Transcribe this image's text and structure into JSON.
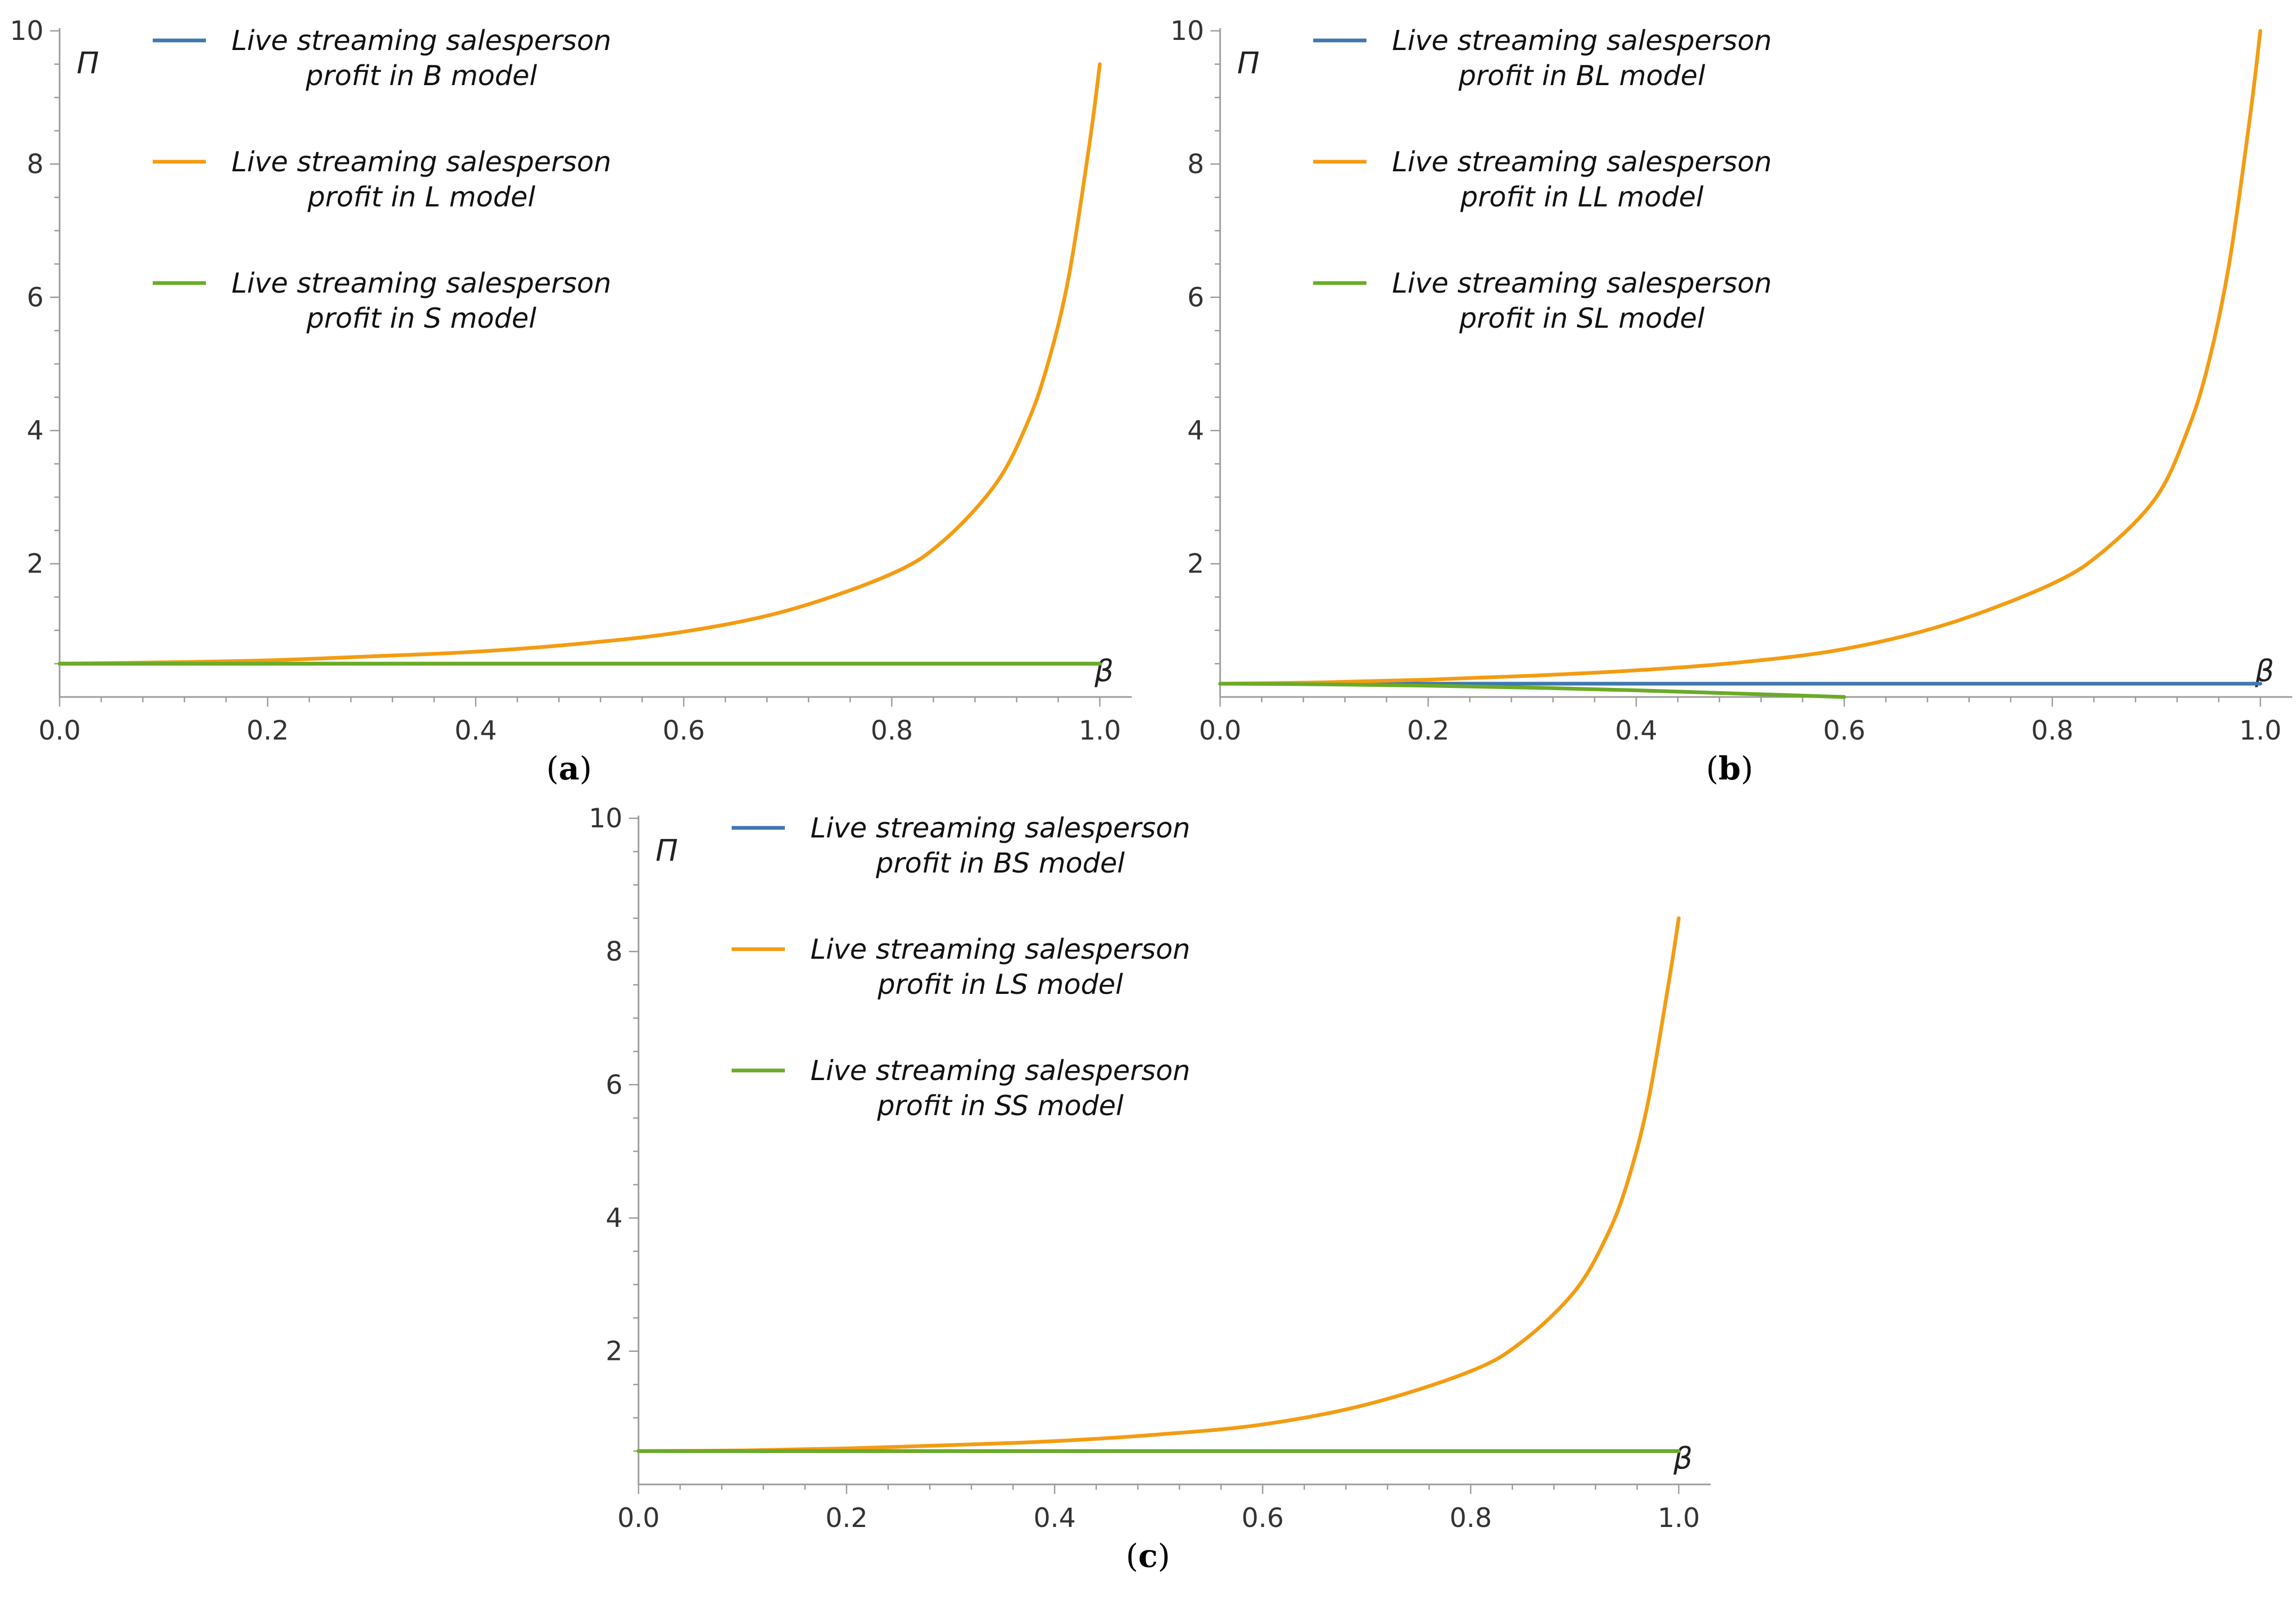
{
  "colors": {
    "blue": "#3f78b0",
    "orange": "#f39c12",
    "green": "#6aab27",
    "axis": "#9a9a9a"
  },
  "chart_data": [
    {
      "id": "a",
      "type": "line",
      "panel_label": "a",
      "xlabel": "β",
      "ylabel": "Π",
      "xlim": [
        0.0,
        1.0
      ],
      "ylim": [
        0,
        10
      ],
      "x_ticks": [
        "0.0",
        "0.2",
        "0.4",
        "0.6",
        "0.8",
        "1.0"
      ],
      "y_ticks": [
        "2",
        "4",
        "6",
        "8",
        "10"
      ],
      "legend_placement": "top-left",
      "series": [
        {
          "name_line1": "Live streaming salesperson",
          "name_line2": "profit in B model",
          "color": "#3f78b0",
          "x": [
            0.0,
            0.2,
            0.4,
            0.6,
            0.8,
            1.0
          ],
          "values": [
            0.5,
            0.5,
            0.5,
            0.5,
            0.5,
            0.5
          ]
        },
        {
          "name_line1": "Live streaming salesperson",
          "name_line2": "profit in L model",
          "color": "#f39c12",
          "x": [
            0.0,
            0.1,
            0.2,
            0.3,
            0.4,
            0.5,
            0.6,
            0.7,
            0.8,
            0.85,
            0.9,
            0.93,
            0.95,
            0.97,
            0.99,
            1.0
          ],
          "values": [
            0.5,
            0.52,
            0.55,
            0.61,
            0.68,
            0.8,
            0.98,
            1.3,
            1.85,
            2.35,
            3.2,
            4.1,
            5.0,
            6.3,
            8.3,
            9.5
          ]
        },
        {
          "name_line1": "Live streaming salesperson",
          "name_line2": "profit in S model",
          "color": "#6aab27",
          "x": [
            0.0,
            0.2,
            0.4,
            0.6,
            0.8,
            1.0
          ],
          "values": [
            0.5,
            0.5,
            0.5,
            0.5,
            0.5,
            0.5
          ]
        }
      ]
    },
    {
      "id": "b",
      "type": "line",
      "panel_label": "b",
      "xlabel": "β",
      "ylabel": "Π",
      "xlim": [
        0.0,
        1.0
      ],
      "ylim": [
        0,
        10
      ],
      "x_ticks": [
        "0.0",
        "0.2",
        "0.4",
        "0.6",
        "0.8",
        "1.0"
      ],
      "y_ticks": [
        "2",
        "4",
        "6",
        "8",
        "10"
      ],
      "legend_placement": "top-left",
      "series": [
        {
          "name_line1": "Live streaming salesperson",
          "name_line2": "profit in BL model",
          "color": "#3f78b0",
          "x": [
            0.0,
            0.2,
            0.4,
            0.6,
            0.8,
            1.0
          ],
          "values": [
            0.2,
            0.2,
            0.2,
            0.2,
            0.2,
            0.2
          ]
        },
        {
          "name_line1": "Live streaming salesperson",
          "name_line2": "profit in LL model",
          "color": "#f39c12",
          "x": [
            0.0,
            0.1,
            0.2,
            0.3,
            0.4,
            0.5,
            0.6,
            0.7,
            0.8,
            0.85,
            0.9,
            0.93,
            0.95,
            0.97,
            0.99,
            1.0
          ],
          "values": [
            0.2,
            0.22,
            0.26,
            0.32,
            0.4,
            0.52,
            0.72,
            1.1,
            1.7,
            2.2,
            3.0,
            4.0,
            5.0,
            6.5,
            8.7,
            10.0
          ]
        },
        {
          "name_line1": "Live streaming salesperson",
          "name_line2": "profit in SL model",
          "color": "#6aab27",
          "x": [
            0.0,
            0.1,
            0.2,
            0.3,
            0.4,
            0.5,
            0.6
          ],
          "values": [
            0.2,
            0.19,
            0.17,
            0.14,
            0.1,
            0.05,
            0.0
          ]
        }
      ]
    },
    {
      "id": "c",
      "type": "line",
      "panel_label": "c",
      "xlabel": "β",
      "ylabel": "Π",
      "xlim": [
        0.0,
        1.0
      ],
      "ylim": [
        0,
        10
      ],
      "x_ticks": [
        "0.0",
        "0.2",
        "0.4",
        "0.6",
        "0.8",
        "1.0"
      ],
      "y_ticks": [
        "2",
        "4",
        "6",
        "8",
        "10"
      ],
      "legend_placement": "top-left",
      "series": [
        {
          "name_line1": "Live streaming salesperson",
          "name_line2": "profit in BS model",
          "color": "#3f78b0",
          "x": [
            0.0,
            0.2,
            0.4,
            0.6,
            0.8,
            1.0
          ],
          "values": [
            0.5,
            0.5,
            0.5,
            0.5,
            0.5,
            0.5
          ]
        },
        {
          "name_line1": "Live streaming salesperson",
          "name_line2": "profit in LS model",
          "color": "#f39c12",
          "x": [
            0.0,
            0.1,
            0.2,
            0.3,
            0.4,
            0.5,
            0.6,
            0.7,
            0.8,
            0.85,
            0.9,
            0.93,
            0.95,
            0.97,
            0.99,
            1.0
          ],
          "values": [
            0.5,
            0.51,
            0.54,
            0.59,
            0.65,
            0.75,
            0.9,
            1.2,
            1.7,
            2.15,
            2.9,
            3.7,
            4.5,
            5.7,
            7.5,
            8.5
          ]
        },
        {
          "name_line1": "Live streaming salesperson",
          "name_line2": "profit in SS model",
          "color": "#6aab27",
          "x": [
            0.0,
            0.2,
            0.4,
            0.6,
            0.8,
            1.0
          ],
          "values": [
            0.5,
            0.5,
            0.5,
            0.5,
            0.5,
            0.5
          ]
        }
      ]
    }
  ]
}
